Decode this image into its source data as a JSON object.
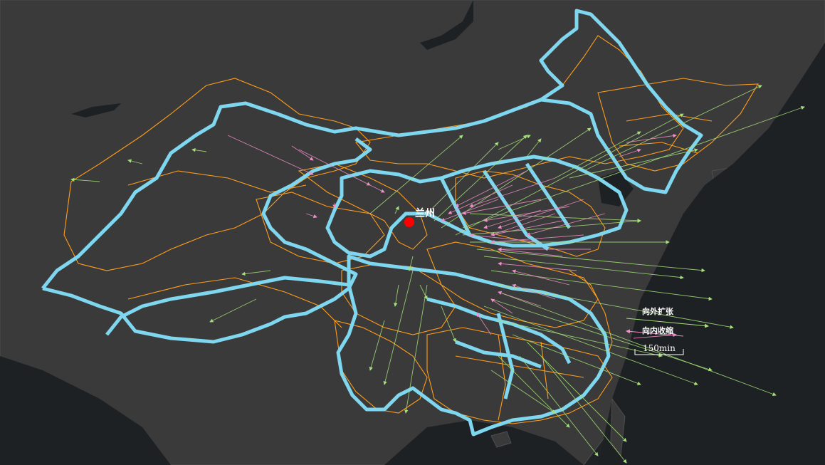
{
  "map": {
    "colors": {
      "background": "#202325",
      "land": "#3a3a3a",
      "water": "#1e2123",
      "country_border": "#4e4e4e",
      "region_border": "#7fd6ef",
      "province_border": "#ff9d1a",
      "outward_arrow": "#a6e07a",
      "inward_arrow": "#f08fc8",
      "city_marker": "#ff0000"
    },
    "city": {
      "name": "兰州"
    },
    "legend": {
      "outward_label": "向外扩张",
      "inward_label": "向内收缩",
      "scale_label": "150min"
    }
  }
}
